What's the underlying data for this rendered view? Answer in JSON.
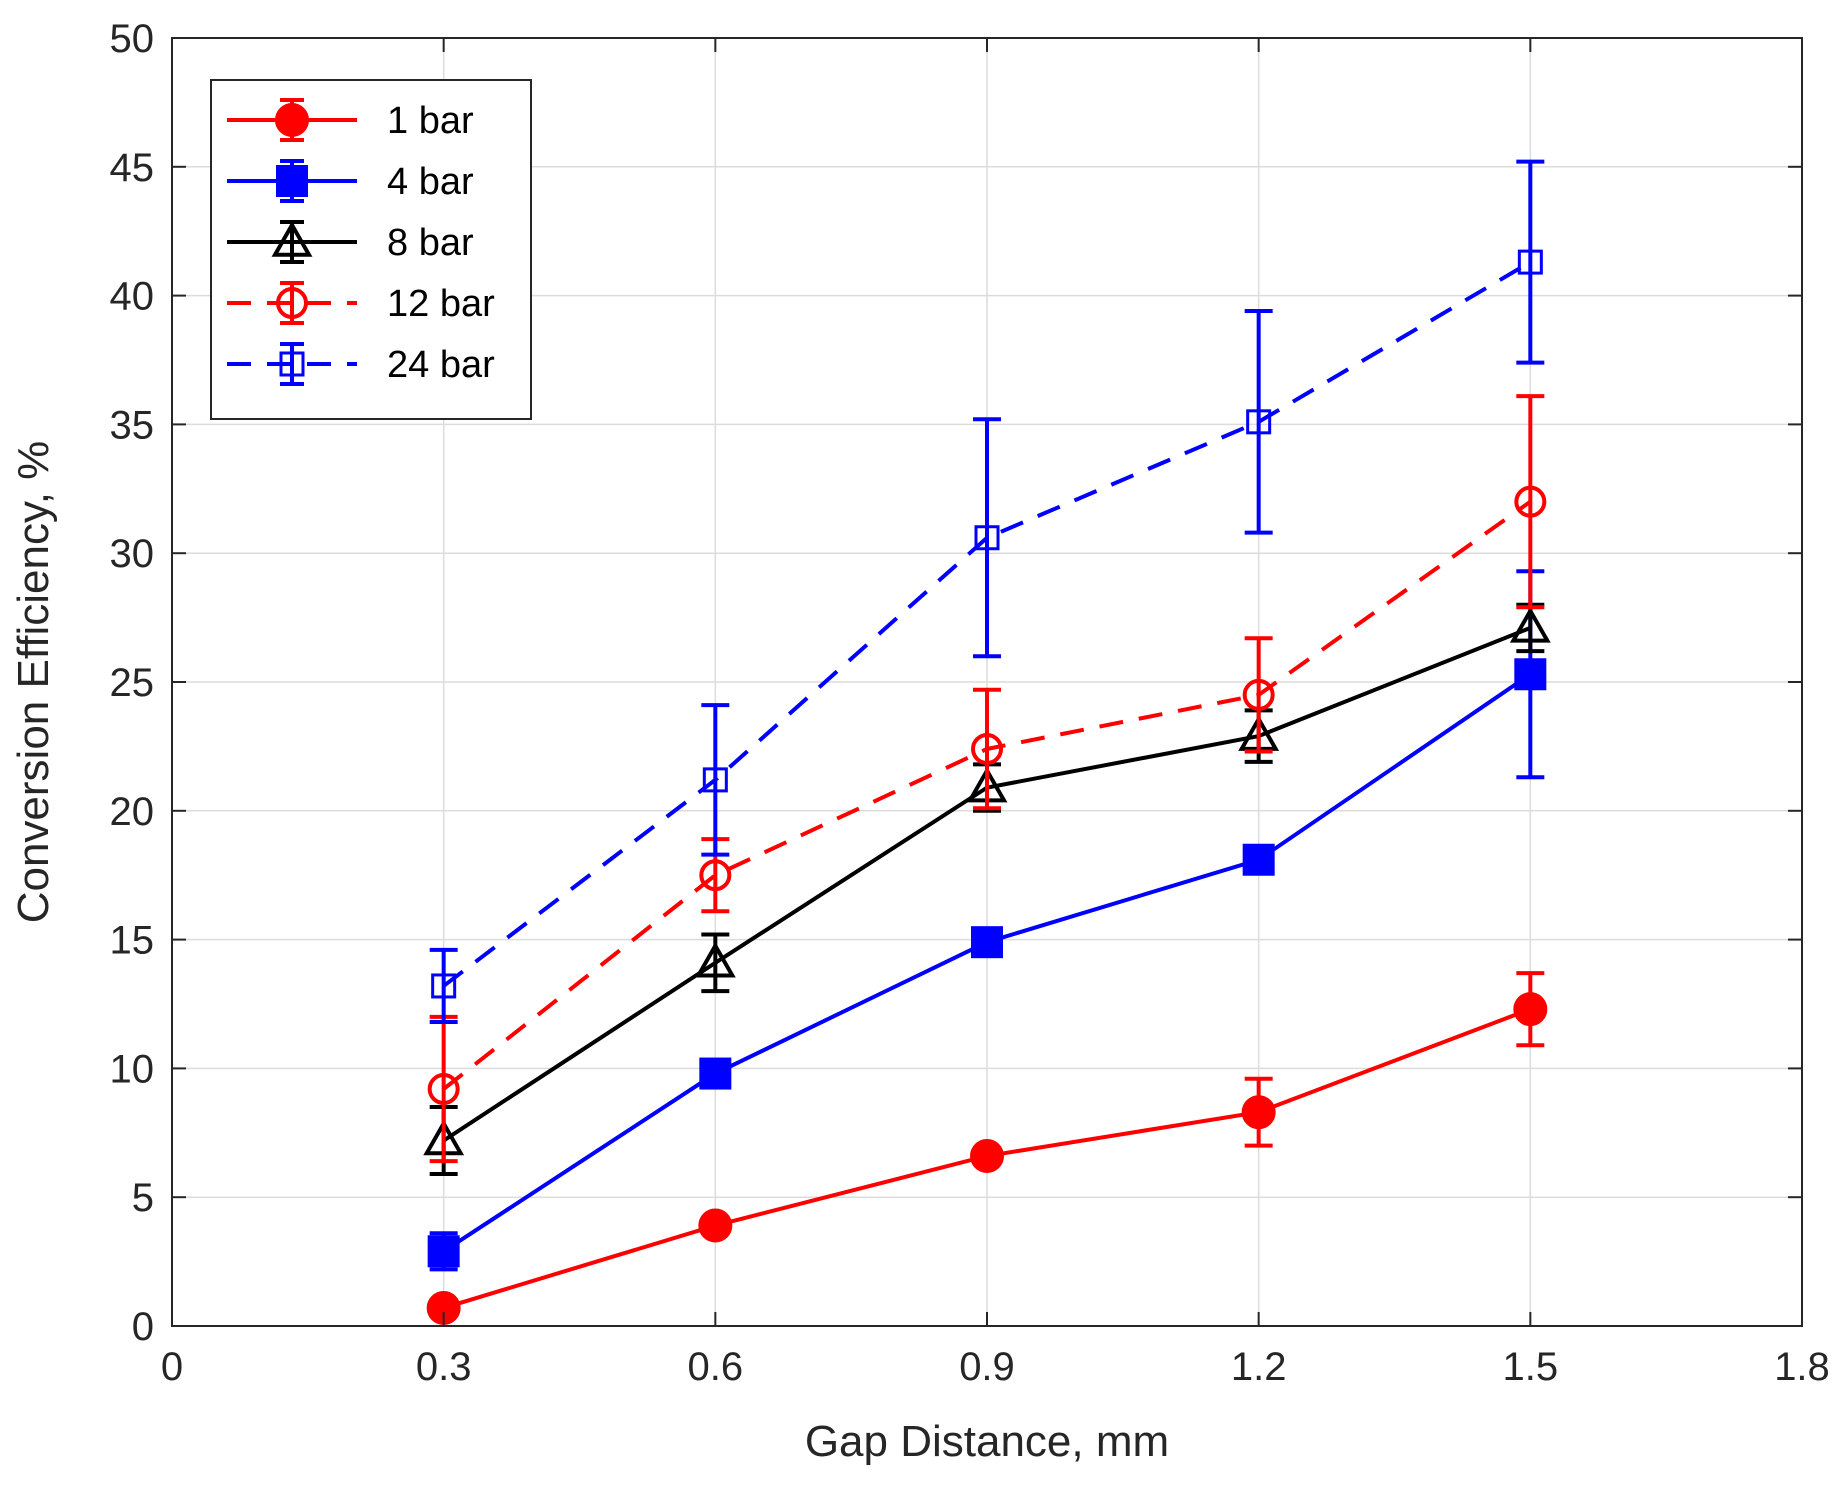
{
  "chart_data": {
    "type": "line",
    "title": "",
    "xlabel": "Gap Distance, mm",
    "ylabel": "Conversion Efficiency, %",
    "xlim": [
      0,
      1.8
    ],
    "ylim": [
      0,
      50
    ],
    "xticks": [
      0,
      0.3,
      0.6,
      0.9,
      1.2,
      1.5,
      1.8
    ],
    "xtick_labels": [
      "0",
      "0.3",
      "0.6",
      "0.9",
      "1.2",
      "1.5",
      "1.8"
    ],
    "yticks": [
      0,
      5,
      10,
      15,
      20,
      25,
      30,
      35,
      40,
      45,
      50
    ],
    "ytick_labels": [
      "0",
      "5",
      "10",
      "15",
      "20",
      "25",
      "30",
      "35",
      "40",
      "45",
      "50"
    ],
    "grid": true,
    "legend_position": "top-left",
    "x": [
      0.3,
      0.6,
      0.9,
      1.2,
      1.5
    ],
    "series": [
      {
        "name": "1 bar",
        "color": "#ff0000",
        "line": "solid",
        "marker": "circle-filled",
        "values": [
          0.7,
          3.9,
          6.6,
          8.3,
          12.3
        ],
        "errors": [
          0.3,
          0.3,
          0.3,
          1.3,
          1.4
        ]
      },
      {
        "name": "4 bar",
        "color": "#0000ff",
        "line": "solid",
        "marker": "square-filled",
        "values": [
          2.9,
          9.8,
          14.9,
          18.1,
          25.3
        ],
        "errors": [
          0.7,
          0.4,
          0.3,
          0.3,
          4.0
        ]
      },
      {
        "name": "8 bar",
        "color": "#000000",
        "line": "solid",
        "marker": "triangle-open",
        "values": [
          7.2,
          14.1,
          20.9,
          22.9,
          27.1
        ],
        "errors": [
          1.3,
          1.1,
          0.9,
          1.0,
          0.9
        ]
      },
      {
        "name": "12 bar",
        "color": "#ff0000",
        "line": "dashed",
        "marker": "circle-open",
        "values": [
          9.2,
          17.5,
          22.4,
          24.5,
          32.0
        ],
        "errors": [
          2.8,
          1.4,
          2.3,
          2.2,
          4.1
        ]
      },
      {
        "name": "24 bar",
        "color": "#0000ff",
        "line": "dashed",
        "marker": "square-open",
        "values": [
          13.2,
          21.2,
          30.6,
          35.1,
          41.3
        ],
        "errors": [
          1.4,
          2.9,
          4.6,
          4.3,
          3.9
        ]
      }
    ]
  }
}
